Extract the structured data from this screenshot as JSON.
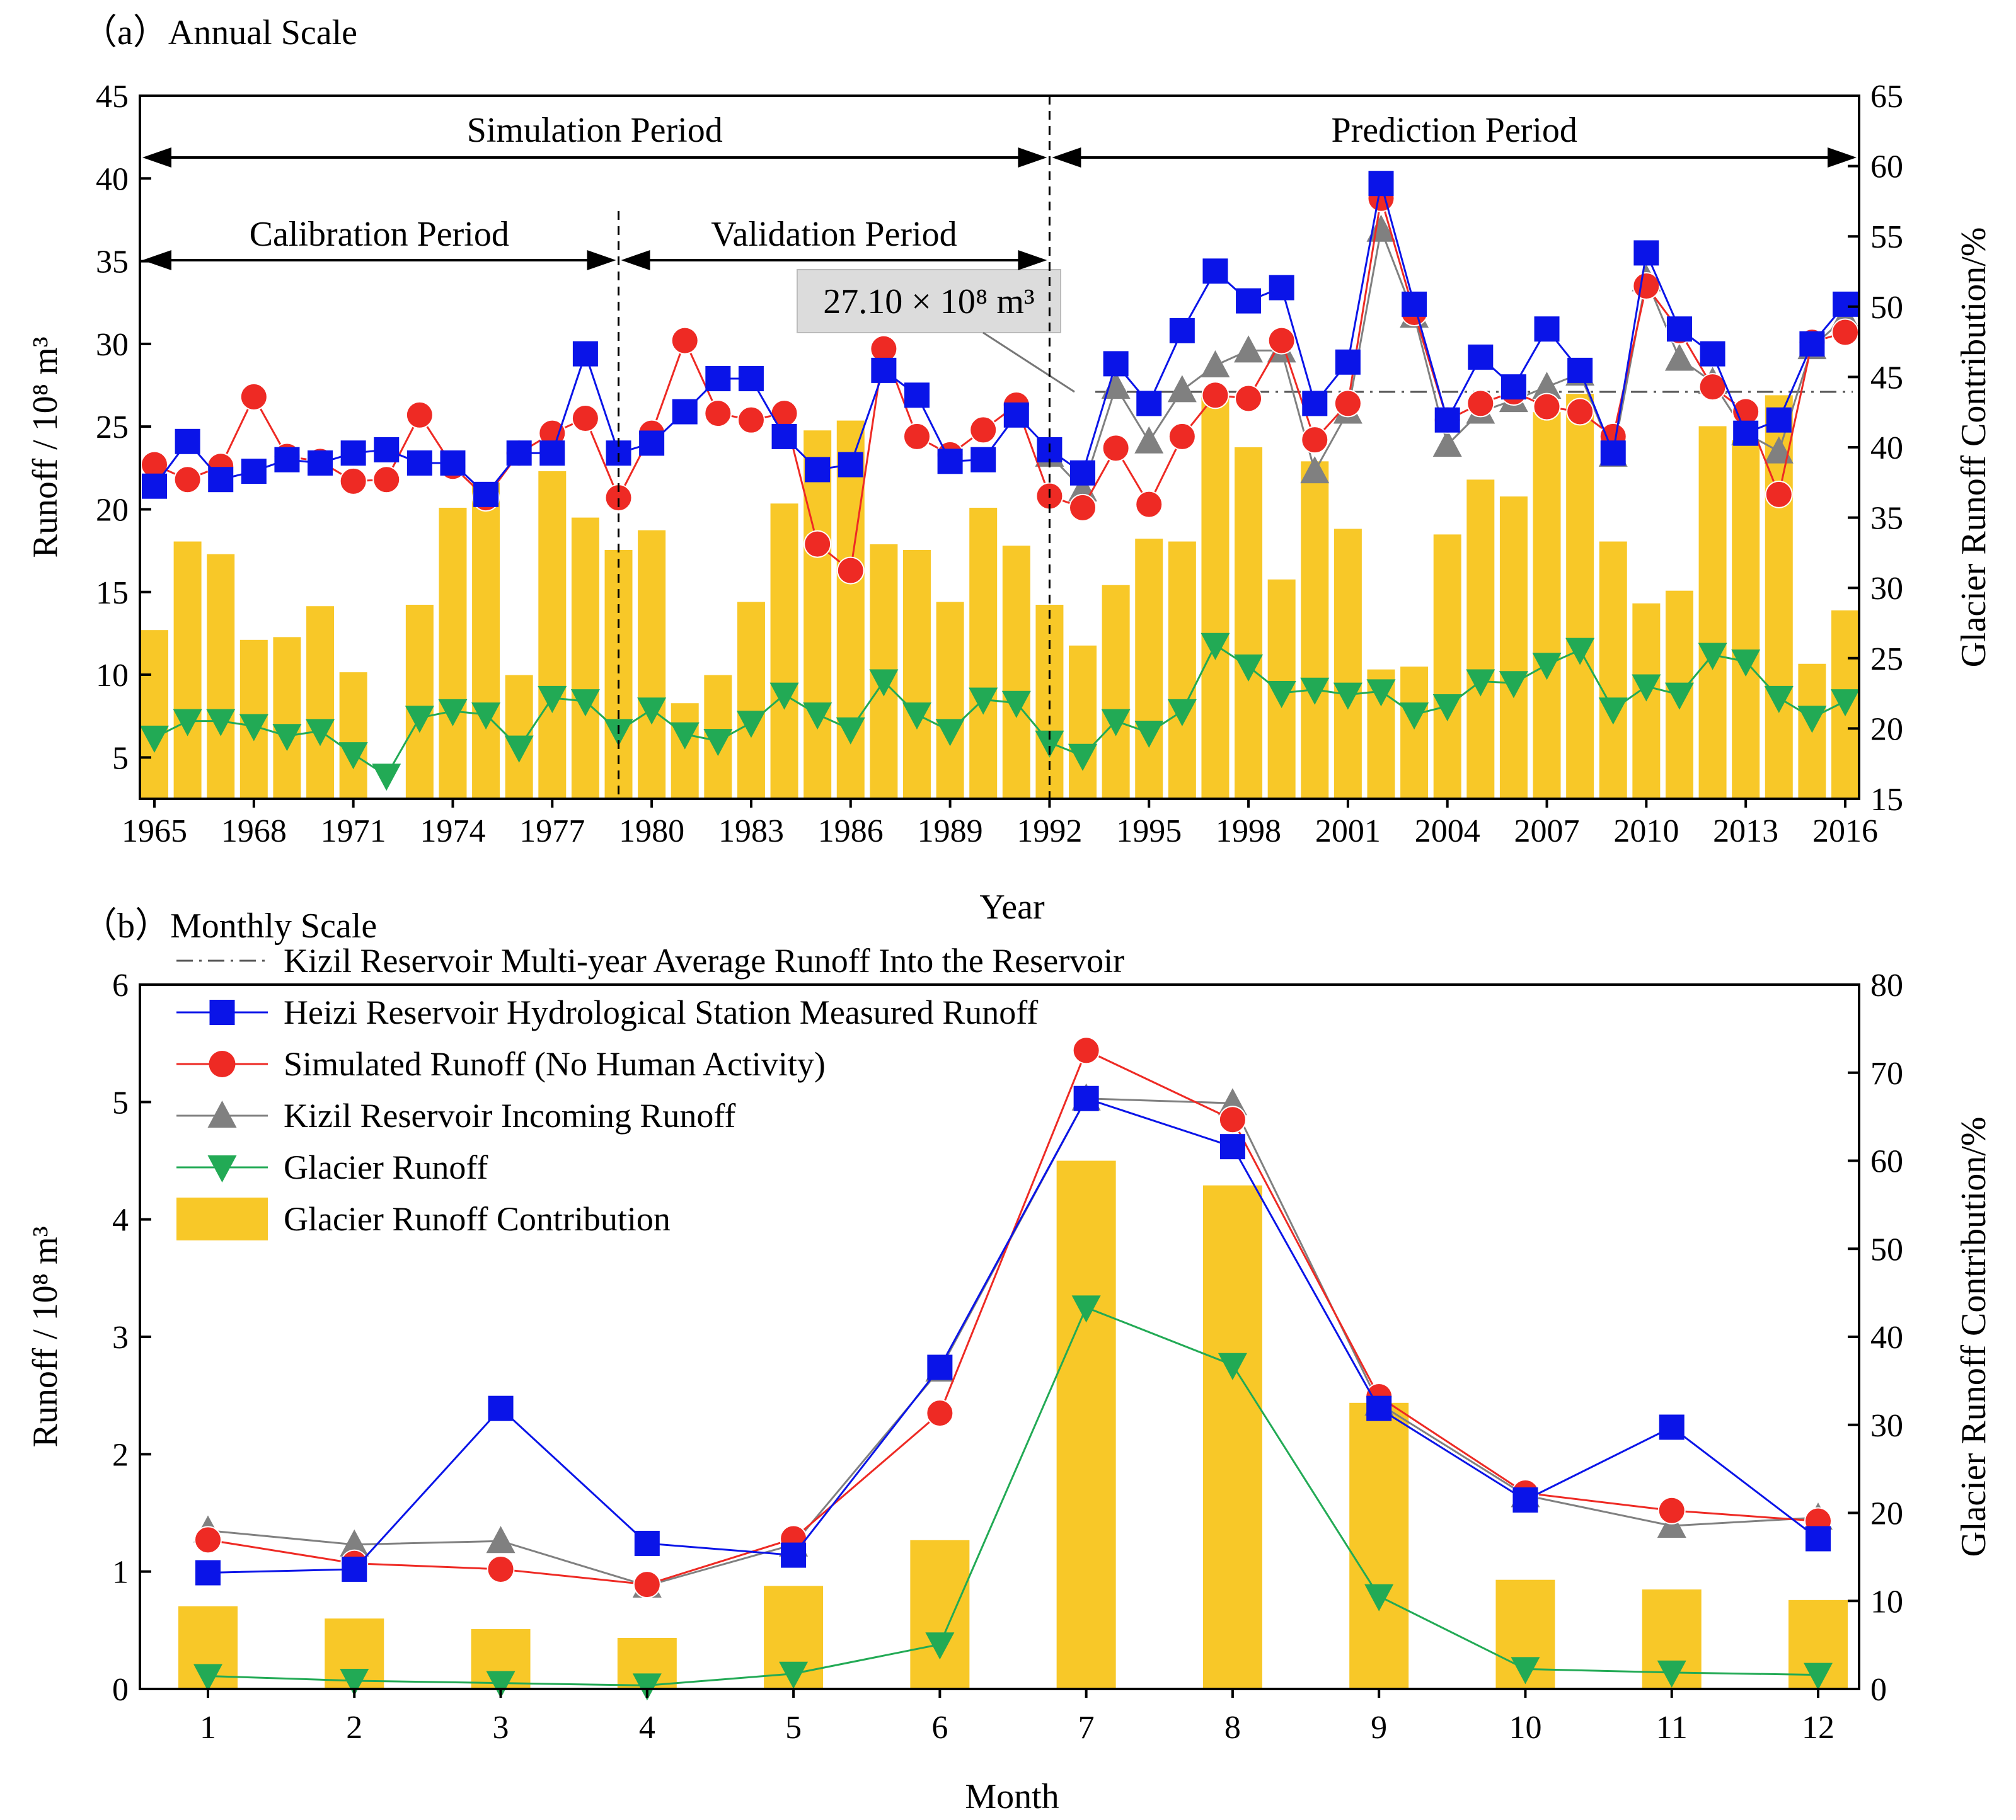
{
  "colors": {
    "measured": "#0a14e8",
    "simulated": "#ee2a24",
    "incoming": "#808080",
    "glacier": "#22aa55",
    "contribution": "#f8c828",
    "average": "#555555"
  },
  "legend": [
    {
      "key": "average",
      "label": "Kizil Reservoir Multi-year Average Runoff Into the Reservoir"
    },
    {
      "key": "measured",
      "label": "Heizi Reservoir Hydrological Station Measured Runoff"
    },
    {
      "key": "simulated",
      "label": "Simulated Runoff (No Human Activity)"
    },
    {
      "key": "incoming",
      "label": "Kizil Reservoir Incoming Runoff"
    },
    {
      "key": "glacier",
      "label": "Glacier Runoff"
    },
    {
      "key": "contribution",
      "label": "Glacier Runoff Contribution"
    }
  ],
  "chart_data": [
    {
      "type": "line",
      "title": "（a）Annual Scale",
      "xlabel": "Year",
      "ylabel": "Runoff / 10⁸ m³",
      "y2label": "Glacier Runoff Contribution/%",
      "ylim": [
        2.5,
        45
      ],
      "y2lim": [
        15,
        65
      ],
      "yticks": [
        5,
        10,
        15,
        20,
        25,
        30,
        35,
        40,
        45
      ],
      "y2ticks": [
        15,
        20,
        25,
        30,
        35,
        40,
        45,
        50,
        55,
        60,
        65
      ],
      "xtick_labels": [
        "1965",
        "1968",
        "1971",
        "1974",
        "1977",
        "1980",
        "1983",
        "1986",
        "1989",
        "1992",
        "1995",
        "1998",
        "2001",
        "2004",
        "2007",
        "2010",
        "2013",
        "2016"
      ],
      "periods": [
        {
          "label": "Simulation Period",
          "from": 1964.5,
          "to": 1992
        },
        {
          "label": "Prediction Period",
          "from": 1992,
          "to": 2016.5
        },
        {
          "label": "Calibration Period",
          "from": 1964.5,
          "to": 1979
        },
        {
          "label": "Validation Period",
          "from": 1979,
          "to": 1992
        }
      ],
      "dividers": [
        1979,
        1992
      ],
      "average_annotation": {
        "label": "27.10 × 10⁸ m³",
        "value": 27.1,
        "from": 1993
      },
      "x": [
        1965,
        1966,
        1967,
        1968,
        1969,
        1970,
        1971,
        1972,
        1973,
        1974,
        1975,
        1976,
        1977,
        1978,
        1979,
        1980,
        1981,
        1982,
        1983,
        1984,
        1985,
        1986,
        1987,
        1988,
        1989,
        1990,
        1991,
        1992,
        1993,
        1994,
        1995,
        1996,
        1997,
        1998,
        1999,
        2000,
        2001,
        2002,
        2003,
        2004,
        2005,
        2006,
        2007,
        2008,
        2009,
        2010,
        2011,
        2012,
        2013,
        2014,
        2015,
        2016
      ],
      "series": [
        {
          "key": "measured",
          "name": "Heizi Reservoir Hydrological Station Measured Runoff",
          "axis": "left",
          "marker": "square",
          "values": [
            21.4,
            24.1,
            21.8,
            22.3,
            23.0,
            22.8,
            23.4,
            23.6,
            22.8,
            22.8,
            20.9,
            23.4,
            23.4,
            29.4,
            23.4,
            24.0,
            25.9,
            27.9,
            27.9,
            24.4,
            22.4,
            22.7,
            28.4,
            26.9,
            22.9,
            23.0,
            25.7,
            23.6,
            22.2,
            28.8,
            26.4,
            30.8,
            34.4,
            32.6,
            33.4,
            26.4,
            28.9,
            39.7,
            32.4,
            25.4,
            29.2,
            27.4,
            30.9,
            28.4,
            23.4,
            35.5,
            30.9,
            29.4,
            24.6,
            25.4,
            30.0,
            32.4
          ]
        },
        {
          "key": "simulated",
          "name": "Simulated Runoff (No Human Activity)",
          "axis": "left",
          "marker": "circle",
          "values": [
            22.7,
            21.8,
            22.6,
            26.8,
            23.2,
            22.9,
            21.7,
            21.8,
            25.7,
            22.6,
            20.7,
            23.4,
            24.6,
            25.5,
            20.7,
            24.6,
            30.2,
            25.8,
            25.4,
            25.8,
            17.9,
            16.3,
            29.7,
            24.4,
            23.3,
            24.8,
            26.3,
            20.8,
            20.1,
            23.7,
            20.3,
            24.4,
            26.9,
            26.7,
            30.2,
            24.2,
            26.4,
            38.8,
            31.9,
            25.4,
            26.4,
            27.1,
            26.2,
            25.9,
            24.4,
            33.5,
            30.8,
            27.4,
            25.9,
            20.9,
            30.1,
            30.7
          ]
        },
        {
          "key": "incoming",
          "name": "Kizil Reservoir Incoming Runoff",
          "axis": "left",
          "marker": "triangle-up",
          "values": [
            null,
            null,
            null,
            null,
            null,
            null,
            null,
            null,
            null,
            null,
            null,
            null,
            null,
            null,
            null,
            null,
            null,
            null,
            null,
            null,
            null,
            null,
            null,
            null,
            null,
            null,
            null,
            23.3,
            21.2,
            27.4,
            24.1,
            27.2,
            28.7,
            29.6,
            29.6,
            22.3,
            25.9,
            36.9,
            31.7,
            23.9,
            25.9,
            26.6,
            27.4,
            28.2,
            23.3,
            33.9,
            29.1,
            27.7,
            24.6,
            23.5,
            29.8,
            31.6
          ]
        },
        {
          "key": "glacier",
          "name": "Glacier Runoff",
          "axis": "left",
          "marker": "triangle-down",
          "values": [
            6.2,
            7.2,
            7.2,
            6.9,
            6.3,
            6.6,
            5.2,
            3.9,
            7.4,
            7.8,
            7.6,
            5.6,
            8.6,
            8.4,
            6.6,
            7.9,
            6.4,
            6.0,
            7.1,
            8.8,
            7.6,
            6.7,
            9.6,
            7.6,
            6.6,
            8.5,
            8.3,
            5.9,
            5.1,
            7.2,
            6.5,
            7.8,
            11.8,
            10.5,
            8.9,
            9.1,
            8.8,
            9.0,
            7.6,
            8.1,
            9.6,
            9.5,
            10.6,
            11.5,
            7.9,
            9.3,
            8.8,
            11.2,
            10.8,
            8.6,
            7.4,
            8.4
          ]
        },
        {
          "key": "contribution",
          "name": "Glacier Runoff Contribution",
          "axis": "right",
          "type": "bar",
          "values": [
            27.0,
            33.3,
            32.4,
            26.3,
            26.5,
            28.7,
            24.0,
            null,
            28.8,
            35.7,
            37.5,
            23.8,
            38.3,
            35.0,
            32.7,
            34.1,
            21.8,
            23.8,
            29.0,
            36.0,
            41.2,
            41.9,
            33.1,
            32.7,
            29.0,
            35.7,
            33.0,
            28.8,
            25.9,
            30.2,
            33.5,
            33.3,
            44.0,
            40.0,
            30.6,
            39.0,
            34.2,
            24.2,
            24.4,
            33.8,
            37.7,
            36.5,
            42.5,
            43.8,
            33.3,
            28.9,
            29.8,
            41.5,
            40.5,
            43.7,
            24.6,
            28.4
          ]
        }
      ]
    },
    {
      "type": "line",
      "title": "（b）Monthly Scale",
      "xlabel": "Month",
      "ylabel": "Runoff / 10⁸ m³",
      "y2label": "Glacier Runoff Contribution/%",
      "ylim": [
        0,
        6
      ],
      "y2lim": [
        0,
        80
      ],
      "yticks": [
        0,
        1,
        2,
        3,
        4,
        5,
        6
      ],
      "y2ticks": [
        0,
        10,
        20,
        30,
        40,
        50,
        60,
        70,
        80
      ],
      "xtick_labels": [
        "1",
        "2",
        "3",
        "4",
        "5",
        "6",
        "7",
        "8",
        "9",
        "10",
        "11",
        "12"
      ],
      "x": [
        1,
        2,
        3,
        4,
        5,
        6,
        7,
        8,
        9,
        10,
        11,
        12
      ],
      "series": [
        {
          "key": "measured",
          "name": "Heizi Reservoir Hydrological Station Measured Runoff",
          "axis": "left",
          "marker": "square",
          "values": [
            0.99,
            1.02,
            2.39,
            1.24,
            1.14,
            2.74,
            5.03,
            4.62,
            2.39,
            1.61,
            2.23,
            1.28
          ]
        },
        {
          "key": "simulated",
          "name": "Simulated Runoff (No Human Activity)",
          "axis": "left",
          "marker": "circle",
          "values": [
            1.27,
            1.07,
            1.02,
            0.89,
            1.28,
            2.35,
            5.44,
            4.85,
            2.49,
            1.67,
            1.52,
            1.43
          ]
        },
        {
          "key": "incoming",
          "name": "Kizil Reservoir Incoming Runoff",
          "axis": "left",
          "marker": "triangle-up",
          "values": [
            1.35,
            1.23,
            1.26,
            0.88,
            1.23,
            2.72,
            5.03,
            4.99,
            2.43,
            1.65,
            1.39,
            1.46
          ]
        },
        {
          "key": "glacier",
          "name": "Glacier Runoff",
          "axis": "left",
          "marker": "triangle-down",
          "values": [
            0.11,
            0.07,
            0.05,
            0.03,
            0.13,
            0.38,
            3.25,
            2.76,
            0.79,
            0.17,
            0.14,
            0.12
          ]
        },
        {
          "key": "contribution",
          "name": "Glacier Runoff Contribution",
          "axis": "right",
          "type": "bar",
          "values": [
            9.4,
            8.0,
            6.8,
            5.8,
            11.7,
            16.9,
            60.0,
            57.2,
            32.5,
            12.4,
            11.3,
            10.1
          ]
        }
      ]
    }
  ]
}
